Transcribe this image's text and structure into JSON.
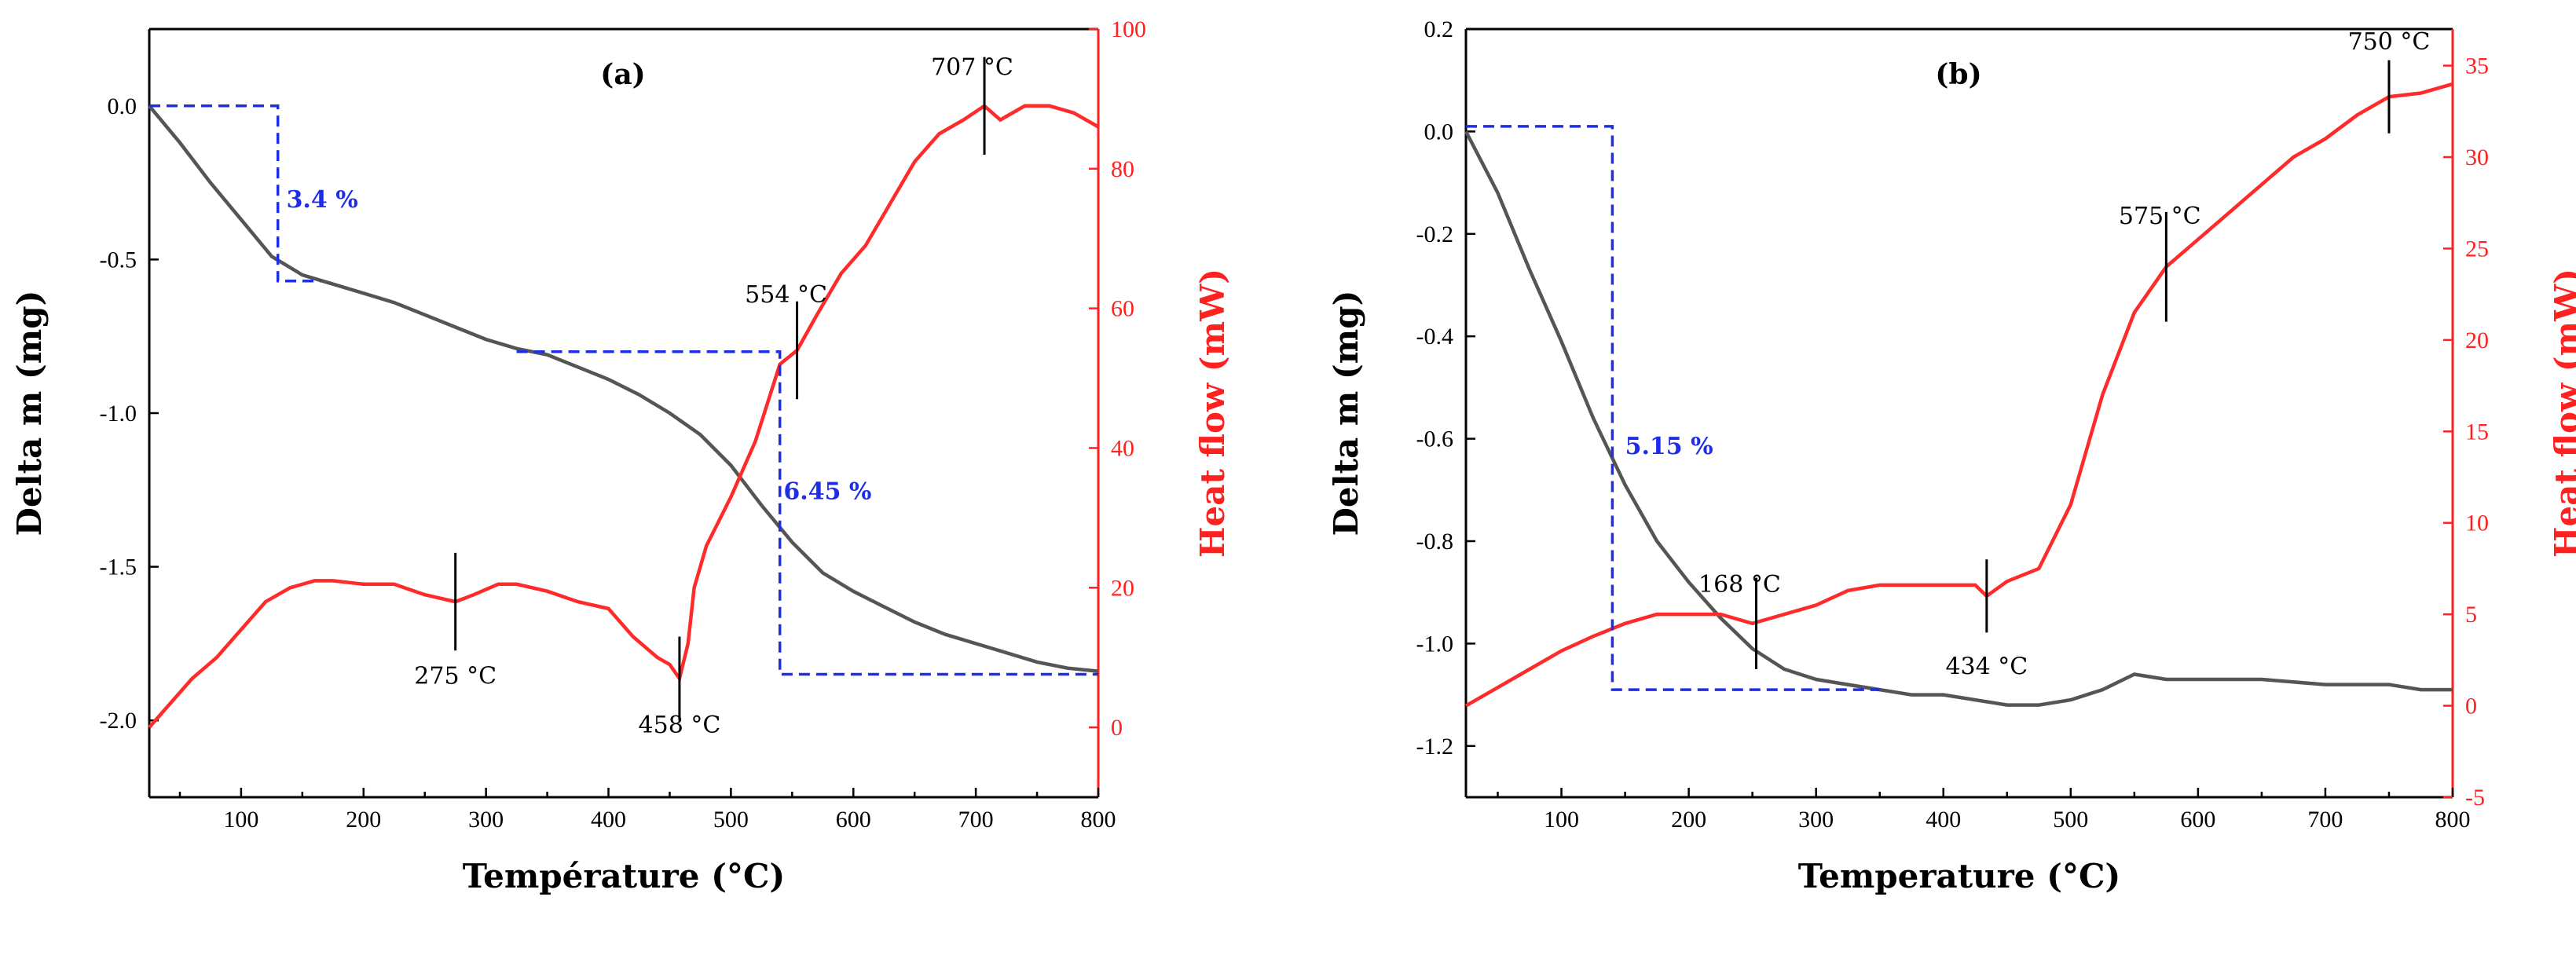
{
  "chart_data": [
    {
      "type": "line",
      "panel_label": "(a)",
      "xlabel": "Température (°C)",
      "ylabel_left": "Delta m (mg)",
      "ylabel_right": "Heat flow (mW)",
      "xlim": [
        25,
        800
      ],
      "ylim_left": [
        -2.25,
        0.25
      ],
      "ylim_right": [
        -10,
        100
      ],
      "x_ticks": [
        100,
        200,
        300,
        400,
        500,
        600,
        700,
        800
      ],
      "y_ticks_left": [
        0.0,
        -0.5,
        -1.0,
        -1.5,
        -2.0
      ],
      "y_ticks_left_labels": [
        "0.0",
        "-0.5",
        "-1.0",
        "-1.5",
        "-2.0"
      ],
      "y_ticks_right": [
        0,
        20,
        40,
        60,
        80,
        100
      ],
      "y_ticks_right_labels": [
        "0",
        "20",
        "40",
        "60",
        "80",
        "100"
      ],
      "colors": {
        "mass": "#555555",
        "heat": "#ff2a2a",
        "guide": "#1e2ee6",
        "right_axis": "#ff2020"
      },
      "series": [
        {
          "name": "Delta m",
          "axis": "left",
          "x": [
            25,
            50,
            75,
            100,
            125,
            150,
            175,
            200,
            225,
            250,
            275,
            300,
            325,
            350,
            375,
            400,
            425,
            450,
            475,
            500,
            525,
            550,
            575,
            600,
            625,
            650,
            675,
            700,
            725,
            750,
            775,
            800
          ],
          "y": [
            0.0,
            -0.12,
            -0.25,
            -0.37,
            -0.49,
            -0.55,
            -0.58,
            -0.61,
            -0.64,
            -0.68,
            -0.72,
            -0.76,
            -0.79,
            -0.81,
            -0.85,
            -0.89,
            -0.94,
            -1.0,
            -1.07,
            -1.17,
            -1.3,
            -1.42,
            -1.52,
            -1.58,
            -1.63,
            -1.68,
            -1.72,
            -1.75,
            -1.78,
            -1.81,
            -1.83,
            -1.84
          ]
        },
        {
          "name": "Heat flow",
          "axis": "right",
          "x": [
            25,
            40,
            60,
            80,
            100,
            120,
            140,
            160,
            175,
            200,
            225,
            250,
            275,
            290,
            310,
            325,
            350,
            375,
            400,
            420,
            440,
            450,
            458,
            465,
            470,
            480,
            500,
            520,
            540,
            554,
            570,
            590,
            610,
            630,
            650,
            670,
            690,
            707,
            720,
            740,
            760,
            780,
            800
          ],
          "y": [
            0,
            3,
            7,
            10,
            14,
            18,
            20,
            21,
            21,
            20.5,
            20.5,
            19,
            18,
            19,
            20.5,
            20.5,
            19.5,
            18,
            17,
            13,
            10,
            9,
            7,
            12,
            20,
            26,
            33,
            41,
            52,
            54,
            59,
            65,
            69,
            75,
            81,
            85,
            87,
            89,
            87,
            89,
            89,
            88,
            86
          ]
        }
      ],
      "annotations": [
        {
          "label": "3.4 %",
          "type": "mass_loss"
        },
        {
          "label": "6.45 %",
          "type": "mass_loss"
        },
        {
          "label": "275 °C",
          "type": "peak"
        },
        {
          "label": "458 °C",
          "type": "peak"
        },
        {
          "label": "554 °C",
          "type": "peak"
        },
        {
          "label": "707 °C",
          "type": "peak"
        }
      ]
    },
    {
      "type": "line",
      "panel_label": "(b)",
      "xlabel": "Temperature (°C)",
      "ylabel_left": "Delta m (mg)",
      "ylabel_right": "Heat flow (mW)",
      "xlim": [
        25,
        800
      ],
      "ylim_left": [
        -1.3,
        0.2
      ],
      "ylim_right": [
        -5,
        37
      ],
      "x_ticks": [
        100,
        200,
        300,
        400,
        500,
        600,
        700,
        800
      ],
      "y_ticks_left": [
        0.2,
        0.0,
        -0.2,
        -0.4,
        -0.6,
        -0.8,
        -1.0,
        -1.2
      ],
      "y_ticks_left_labels": [
        "0.2",
        "0.0",
        "-0.2",
        "-0.4",
        "-0.6",
        "-0.8",
        "-1.0",
        "-1.2"
      ],
      "y_ticks_right": [
        -5,
        0,
        5,
        10,
        15,
        20,
        25,
        30,
        35
      ],
      "y_ticks_right_labels": [
        "-5",
        "0",
        "5",
        "10",
        "15",
        "20",
        "25",
        "30",
        "35"
      ],
      "colors": {
        "mass": "#555555",
        "heat": "#ff2a2a",
        "guide": "#1e2ee6",
        "right_axis": "#ff2020"
      },
      "series": [
        {
          "name": "Delta m",
          "axis": "left",
          "x": [
            25,
            50,
            75,
            100,
            125,
            150,
            175,
            200,
            225,
            250,
            275,
            300,
            325,
            350,
            375,
            400,
            425,
            450,
            475,
            500,
            525,
            550,
            575,
            600,
            650,
            700,
            750,
            775,
            800
          ],
          "y": [
            0.0,
            -0.12,
            -0.27,
            -0.41,
            -0.56,
            -0.69,
            -0.8,
            -0.88,
            -0.95,
            -1.01,
            -1.05,
            -1.07,
            -1.08,
            -1.09,
            -1.1,
            -1.1,
            -1.11,
            -1.12,
            -1.12,
            -1.11,
            -1.09,
            -1.06,
            -1.07,
            -1.07,
            -1.07,
            -1.08,
            -1.08,
            -1.09,
            -1.09
          ]
        },
        {
          "name": "Heat flow",
          "axis": "right",
          "x": [
            25,
            50,
            75,
            100,
            125,
            150,
            175,
            200,
            225,
            250,
            275,
            300,
            325,
            350,
            375,
            400,
            425,
            434,
            450,
            475,
            500,
            525,
            550,
            575,
            600,
            625,
            650,
            675,
            700,
            725,
            750,
            775,
            800
          ],
          "y": [
            0,
            1,
            2,
            3,
            3.8,
            4.5,
            5,
            5,
            5,
            4.5,
            5,
            5.5,
            6.3,
            6.6,
            6.6,
            6.6,
            6.6,
            6.0,
            6.8,
            7.5,
            11,
            17,
            21.5,
            24,
            25.5,
            27,
            28.5,
            30,
            31,
            32.3,
            33.3,
            33.5,
            34
          ]
        }
      ],
      "annotations": [
        {
          "label": "5.15 %",
          "type": "mass_loss"
        },
        {
          "label": "168 °C",
          "type": "peak"
        },
        {
          "label": "434 °C",
          "type": "peak"
        },
        {
          "label": "575 °C",
          "type": "peak"
        },
        {
          "label": "750 °C",
          "type": "peak"
        }
      ]
    }
  ]
}
